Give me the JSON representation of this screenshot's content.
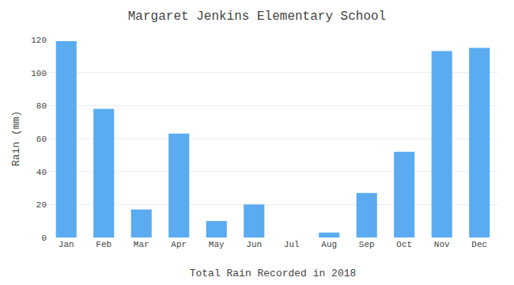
{
  "chart_data": {
    "type": "bar",
    "title": "Margaret Jenkins Elementary School",
    "xlabel": "Total Rain Recorded in 2018",
    "ylabel": "Rain (mm)",
    "categories": [
      "Jan",
      "Feb",
      "Mar",
      "Apr",
      "May",
      "Jun",
      "Jul",
      "Aug",
      "Sep",
      "Oct",
      "Nov",
      "Dec"
    ],
    "values": [
      119,
      78,
      17,
      63,
      10,
      20,
      0,
      3,
      27,
      52,
      113,
      115
    ],
    "color": "#5aabf0",
    "ylim": [
      0,
      120
    ],
    "yticks": [
      0,
      20,
      40,
      60,
      80,
      100,
      120
    ],
    "grid": true
  }
}
